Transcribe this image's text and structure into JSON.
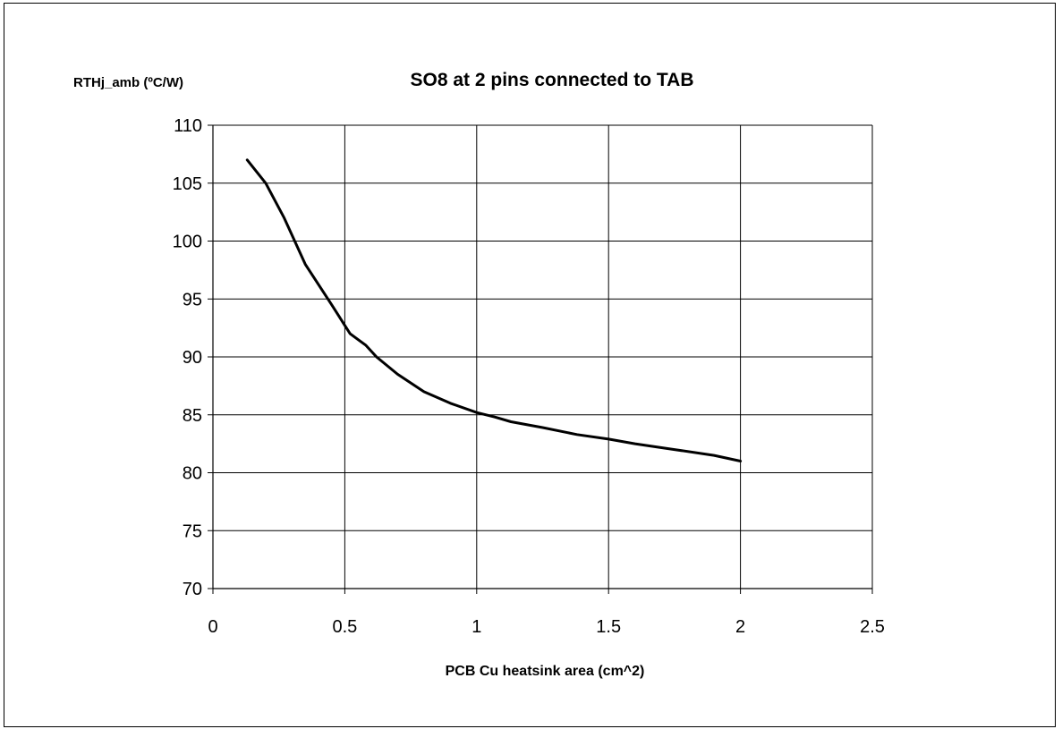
{
  "chart_data": {
    "type": "line",
    "title": "SO8 at 2 pins connected to TAB",
    "ylabel": "RTHj_amb (ºC/W)",
    "xlabel": "PCB Cu heatsink area (cm^2)",
    "xlim": [
      0,
      2.5
    ],
    "ylim": [
      70,
      110
    ],
    "x_ticks": [
      "0",
      "0.5",
      "1",
      "1.5",
      "2",
      "2.5"
    ],
    "y_ticks": [
      "70",
      "75",
      "80",
      "85",
      "90",
      "95",
      "100",
      "105",
      "110"
    ],
    "grid": true,
    "legend": "none",
    "line_color": "#000000",
    "series": [
      {
        "x": [
          0.13,
          0.2,
          0.27,
          0.35,
          0.45,
          0.52,
          0.58,
          0.62,
          0.7,
          0.8,
          0.9,
          1.0,
          1.07,
          1.13,
          1.25,
          1.38,
          1.5,
          1.6,
          1.75,
          1.9,
          2.0
        ],
        "y": [
          107,
          105,
          102,
          98,
          94.5,
          92,
          91,
          90,
          88.5,
          87,
          86,
          85.2,
          84.8,
          84.4,
          83.9,
          83.3,
          82.9,
          82.5,
          82,
          81.5,
          81
        ]
      }
    ]
  }
}
